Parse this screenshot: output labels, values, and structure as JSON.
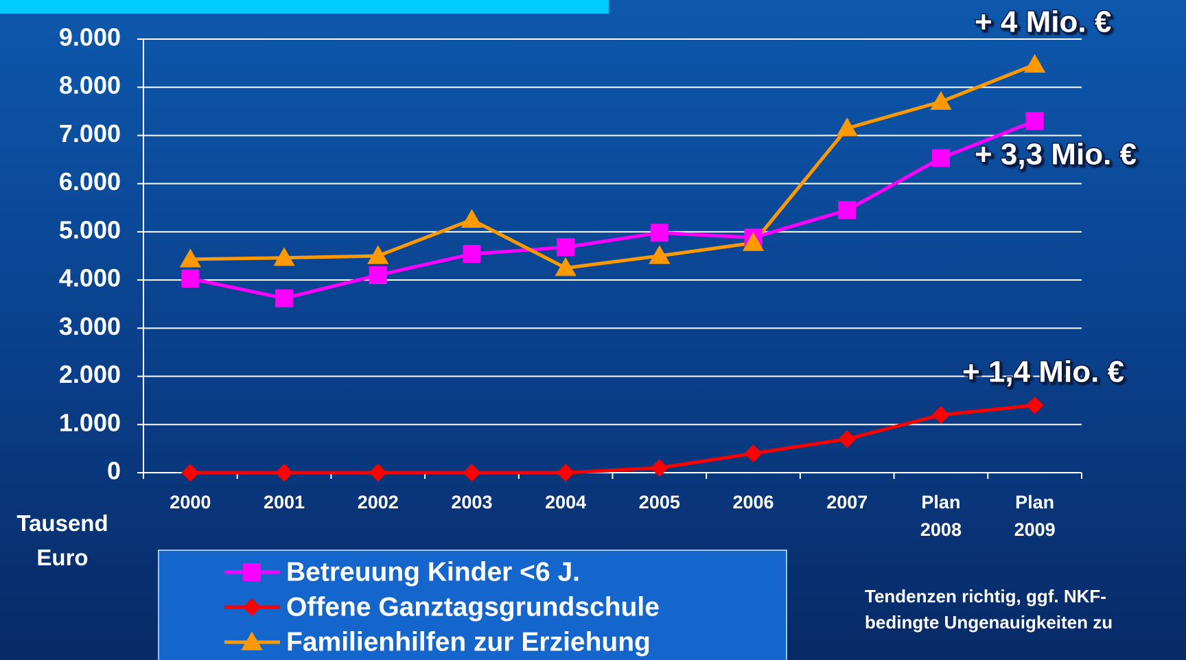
{
  "chart_data": {
    "type": "line",
    "categories": [
      "2000",
      "2001",
      "2002",
      "2003",
      "2004",
      "2005",
      "2006",
      "2007",
      "Plan 2008",
      "Plan 2009"
    ],
    "series": [
      {
        "name": "Betreuung Kinder <6 J.",
        "color": "#ff00ff",
        "marker": "square",
        "values": [
          4030,
          3620,
          4100,
          4540,
          4680,
          4980,
          4880,
          5450,
          6530,
          7300
        ]
      },
      {
        "name": "Offene Ganztagsgrundschule",
        "color": "#ff0000",
        "marker": "diamond",
        "values": [
          0,
          0,
          0,
          0,
          0,
          100,
          400,
          700,
          1200,
          1400
        ]
      },
      {
        "name": "Familienhilfen zur Erziehung",
        "color": "#ff9900",
        "marker": "triangle",
        "values": [
          4430,
          4460,
          4500,
          5250,
          4250,
          4500,
          4770,
          7150,
          7700,
          8470
        ]
      }
    ],
    "ylim": [
      0,
      9000
    ],
    "yticks": [
      0,
      {
        "value": 1000,
        "label": "1.000"
      },
      {
        "value": 2000,
        "label": "2.000"
      },
      {
        "value": 3000,
        "label": "3.000"
      },
      {
        "value": 4000,
        "label": "4.000"
      },
      {
        "value": 5000,
        "label": "5.000"
      },
      {
        "value": 6000,
        "label": "6.000"
      },
      {
        "value": 7000,
        "label": "7.000"
      },
      {
        "value": 8000,
        "label": "8.000"
      },
      {
        "value": 9000,
        "label": "9.000"
      }
    ],
    "grid": true,
    "ylabel": "Tausend Euro",
    "annotations": [
      "+ 4 Mio. €",
      "+ 3,3 Mio. €",
      "+ 1,4 Mio. €"
    ],
    "note": "Tendenzen richtig, ggf. NKF-bedingte Ungenauigkeiten zu"
  }
}
